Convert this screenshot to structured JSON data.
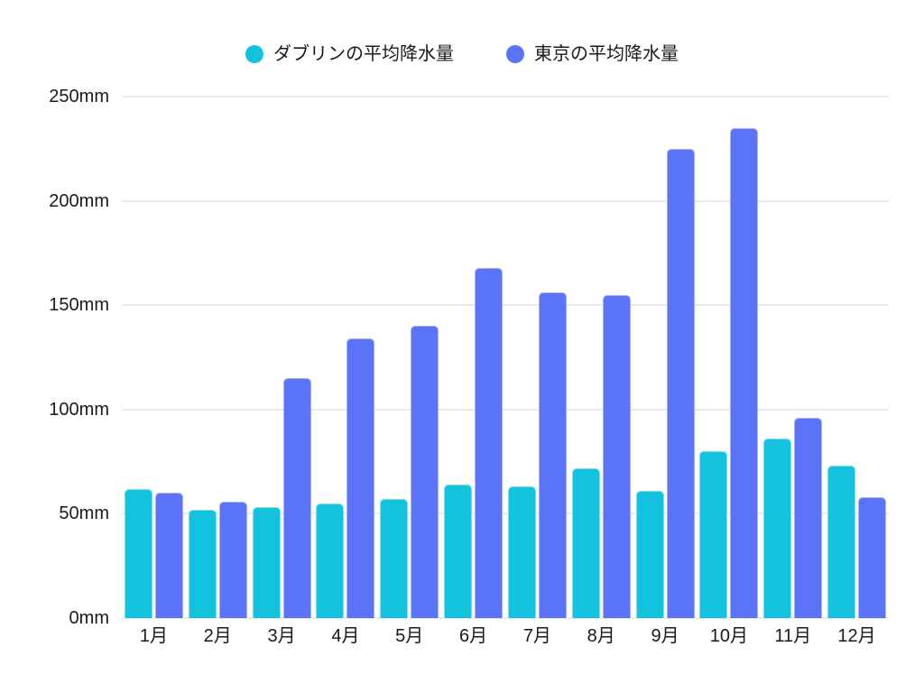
{
  "chart_data": {
    "type": "bar",
    "title": "",
    "xlabel": "",
    "ylabel": "",
    "unit": "mm",
    "categories": [
      "1月",
      "2月",
      "3月",
      "4月",
      "5月",
      "6月",
      "7月",
      "8月",
      "9月",
      "10月",
      "11月",
      "12月"
    ],
    "series": [
      {
        "name": "ダブリンの平均降水量",
        "color": "#13c2dc",
        "values": [
          62,
          52,
          53,
          55,
          57,
          64,
          63,
          72,
          61,
          80,
          86,
          73
        ]
      },
      {
        "name": "東京の平均降水量",
        "color": "#5b73f7",
        "values": [
          60,
          56,
          115,
          134,
          140,
          168,
          156,
          155,
          225,
          235,
          96,
          58
        ]
      }
    ],
    "ylim": [
      0,
      250
    ],
    "ytick_labels": [
      "0mm",
      "50mm",
      "100mm",
      "150mm",
      "200mm",
      "250mm"
    ],
    "grid": true,
    "legend_position": "top",
    "colors": {
      "background": "#ffffff",
      "grid": "#ebebeb",
      "text": "#1a1a1a"
    }
  }
}
